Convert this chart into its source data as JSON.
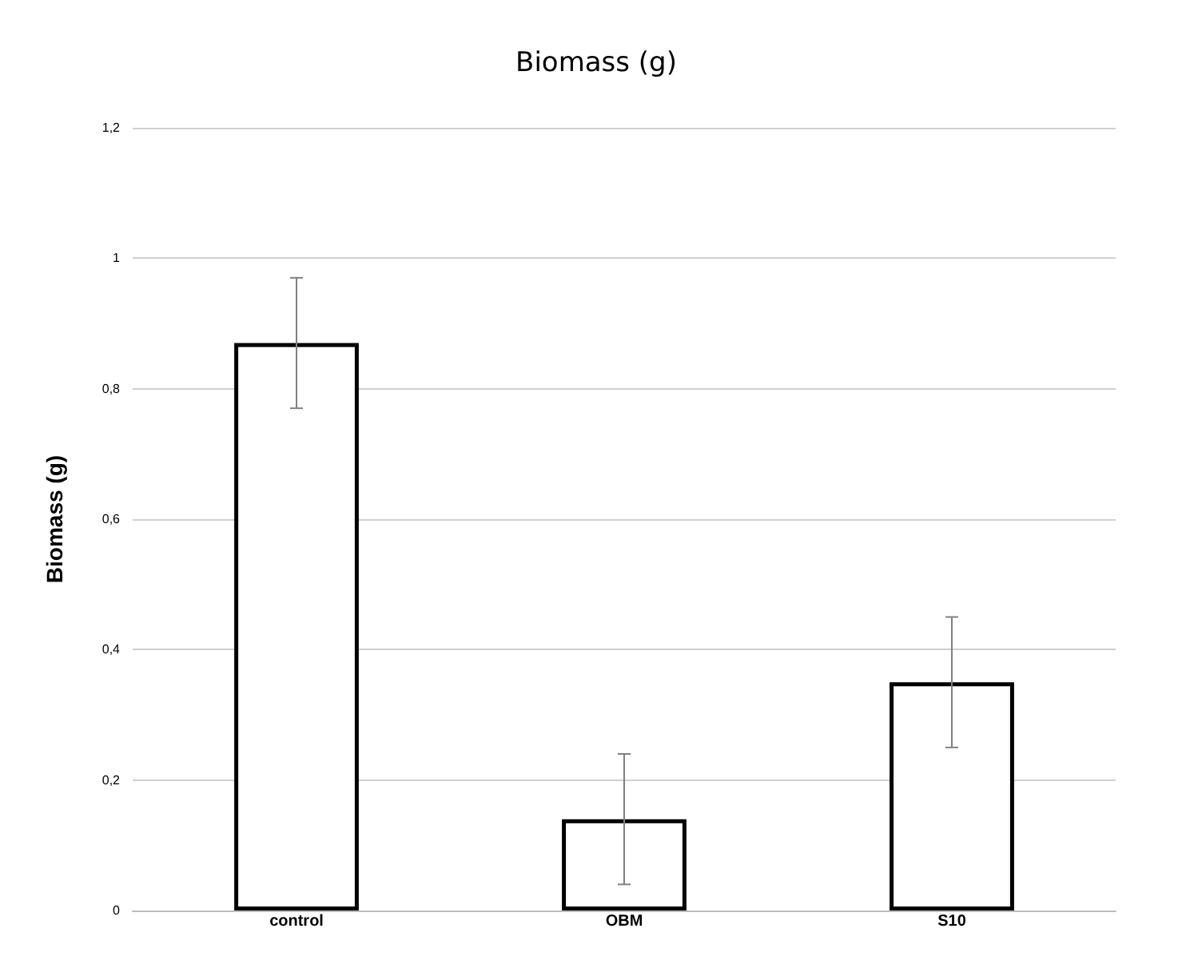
{
  "chart_data": {
    "type": "bar",
    "title": "Biomass (g)",
    "ylabel": "Biomass (g)",
    "categories": [
      "control",
      "OBM",
      "S10"
    ],
    "values": [
      0.87,
      0.14,
      0.35
    ],
    "errors": [
      0.1,
      0.1,
      0.1
    ],
    "color": "#ffffff",
    "ylim": [
      0,
      1.2
    ],
    "yticks": [
      {
        "value": 0,
        "label": "0"
      },
      {
        "value": 0.2,
        "label": "0,2"
      },
      {
        "value": 0.4,
        "label": "0,4"
      },
      {
        "value": 0.6,
        "label": "0,6"
      },
      {
        "value": 0.8,
        "label": "0,8"
      },
      {
        "value": 1,
        "label": "1"
      },
      {
        "value": 1.2,
        "label": "1,2"
      }
    ],
    "grid": true
  }
}
